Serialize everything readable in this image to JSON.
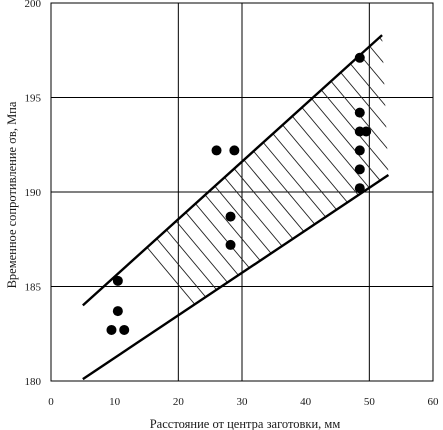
{
  "chart_data": {
    "type": "scatter",
    "title": "",
    "xlabel": "Расстояние от центра заготовки, мм",
    "ylabel": "Временное сопротивление σв, Мпа",
    "xlim": [
      0,
      60
    ],
    "ylim": [
      180,
      200
    ],
    "x_ticks": [
      0,
      10,
      20,
      30,
      40,
      50,
      60
    ],
    "x_tick_labels": [
      "0",
      "10",
      "20",
      "30",
      "40",
      "50",
      "60"
    ],
    "y_ticks": [
      180,
      185,
      190,
      195,
      200
    ],
    "y_tick_labels": [
      "180",
      "185",
      "190",
      "195",
      "200"
    ],
    "grid": true,
    "grid_x": [
      20,
      30,
      50
    ],
    "grid_y": [
      185,
      190,
      195
    ],
    "points": [
      {
        "x": 9.5,
        "y": 182.7
      },
      {
        "x": 11.5,
        "y": 182.7
      },
      {
        "x": 10.5,
        "y": 183.7
      },
      {
        "x": 10.5,
        "y": 185.3
      },
      {
        "x": 28.2,
        "y": 187.2
      },
      {
        "x": 28.2,
        "y": 188.7
      },
      {
        "x": 26.0,
        "y": 192.2
      },
      {
        "x": 28.8,
        "y": 192.2
      },
      {
        "x": 48.5,
        "y": 197.1
      },
      {
        "x": 48.5,
        "y": 194.2
      },
      {
        "x": 48.5,
        "y": 193.2
      },
      {
        "x": 49.5,
        "y": 193.2
      },
      {
        "x": 48.5,
        "y": 192.2
      },
      {
        "x": 48.5,
        "y": 191.2
      },
      {
        "x": 48.5,
        "y": 190.2
      }
    ],
    "band": {
      "upper": [
        {
          "x": 5,
          "y": 184
        },
        {
          "x": 52,
          "y": 198.3
        }
      ],
      "lower": [
        {
          "x": 5,
          "y": 180.1
        },
        {
          "x": 53,
          "y": 190.9
        }
      ],
      "hatched": true
    }
  }
}
